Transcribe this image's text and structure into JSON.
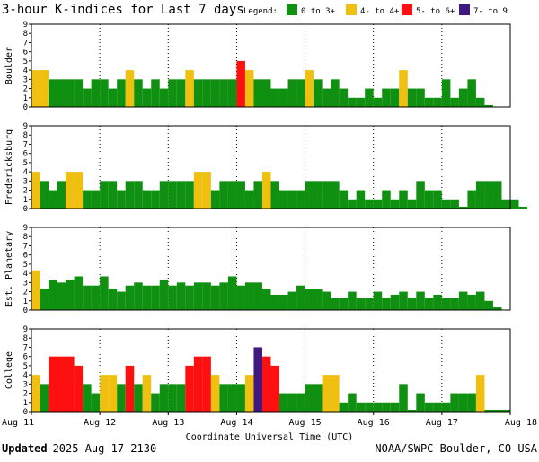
{
  "title": "3-hour K-indices for Last 7 days",
  "legend": {
    "label": "Legend:",
    "items": [
      {
        "label": "0 to 3+",
        "color": "#109010"
      },
      {
        "label": "4- to 4+",
        "color": "#f0c010"
      },
      {
        "label": "5- to 6+",
        "color": "#ff1010"
      },
      {
        "label": "7- to 9",
        "color": "#401880"
      }
    ]
  },
  "colors": {
    "quiet": "#109010",
    "active": "#f0c010",
    "storm": "#ff1010",
    "severe": "#401880"
  },
  "xlabel": "Coordinate Universal Time (UTC)",
  "footer": {
    "updated_label": "Updated",
    "updated_value": "2025 Aug 17 2130",
    "source": "NOAA/SWPC Boulder, CO USA"
  },
  "chart_data": {
    "type": "bar",
    "x_tick_labels": [
      "Aug 11",
      "Aug 12",
      "Aug 13",
      "Aug 14",
      "Aug 15",
      "Aug 16",
      "Aug 17",
      "Aug 18"
    ],
    "y_ticks": [
      0,
      1,
      2,
      3,
      4,
      5,
      6,
      7,
      8,
      9
    ],
    "ylim": [
      0,
      9
    ],
    "grid": true,
    "panels": [
      {
        "name": "Boulder",
        "values": [
          4,
          4,
          3,
          3,
          3,
          3,
          2,
          3,
          3,
          2,
          3,
          4,
          3,
          2,
          3,
          2,
          3,
          3,
          4,
          3,
          3,
          3,
          3,
          3,
          5,
          4,
          3,
          3,
          2,
          2,
          3,
          3,
          4,
          3,
          2,
          3,
          2,
          1,
          1,
          2,
          1,
          2,
          2,
          4,
          2,
          2,
          1,
          1,
          3,
          1,
          2,
          3,
          1,
          0.2
        ]
      },
      {
        "name": "Fredericksburg",
        "values": [
          4,
          3,
          2,
          3,
          4,
          4,
          2,
          2,
          3,
          3,
          2,
          3,
          3,
          2,
          2,
          3,
          3,
          3,
          3,
          4,
          4,
          2,
          3,
          3,
          3,
          2,
          3,
          4,
          3,
          2,
          2,
          2,
          3,
          3,
          3,
          3,
          2,
          1,
          2,
          1,
          1,
          2,
          1,
          2,
          1,
          3,
          2,
          2,
          1,
          1,
          0.2,
          2,
          3,
          3,
          3,
          1,
          1,
          0.2
        ]
      },
      {
        "name": "Est. Planetary",
        "values": [
          4.33,
          2.33,
          3.33,
          3,
          3.33,
          3.67,
          2.67,
          2.67,
          3.67,
          2.33,
          2,
          2.67,
          3,
          2.67,
          2.67,
          3.33,
          2.67,
          3,
          2.67,
          3,
          3,
          2.67,
          3,
          3.67,
          2.67,
          3,
          3,
          2.33,
          1.67,
          1.67,
          2,
          2.67,
          2.33,
          2.33,
          2,
          1.33,
          1.33,
          2,
          1.33,
          1.33,
          2,
          1.33,
          1.67,
          2,
          1.33,
          2,
          1.33,
          1.67,
          1.33,
          1.33,
          2,
          1.67,
          2,
          1,
          0.33
        ]
      },
      {
        "name": "College",
        "values": [
          4,
          3,
          6,
          6,
          6,
          5,
          3,
          2,
          4,
          4,
          3,
          5,
          3,
          4,
          2,
          3,
          3,
          3,
          5,
          6,
          6,
          4,
          3,
          3,
          3,
          4,
          7,
          6,
          5,
          2,
          2,
          2,
          3,
          3,
          4,
          4,
          1,
          2,
          1,
          1,
          1,
          1,
          1,
          3,
          0.2,
          2,
          1,
          1,
          1,
          2,
          2,
          2,
          4,
          0.2,
          0.2,
          0.2
        ]
      }
    ]
  }
}
